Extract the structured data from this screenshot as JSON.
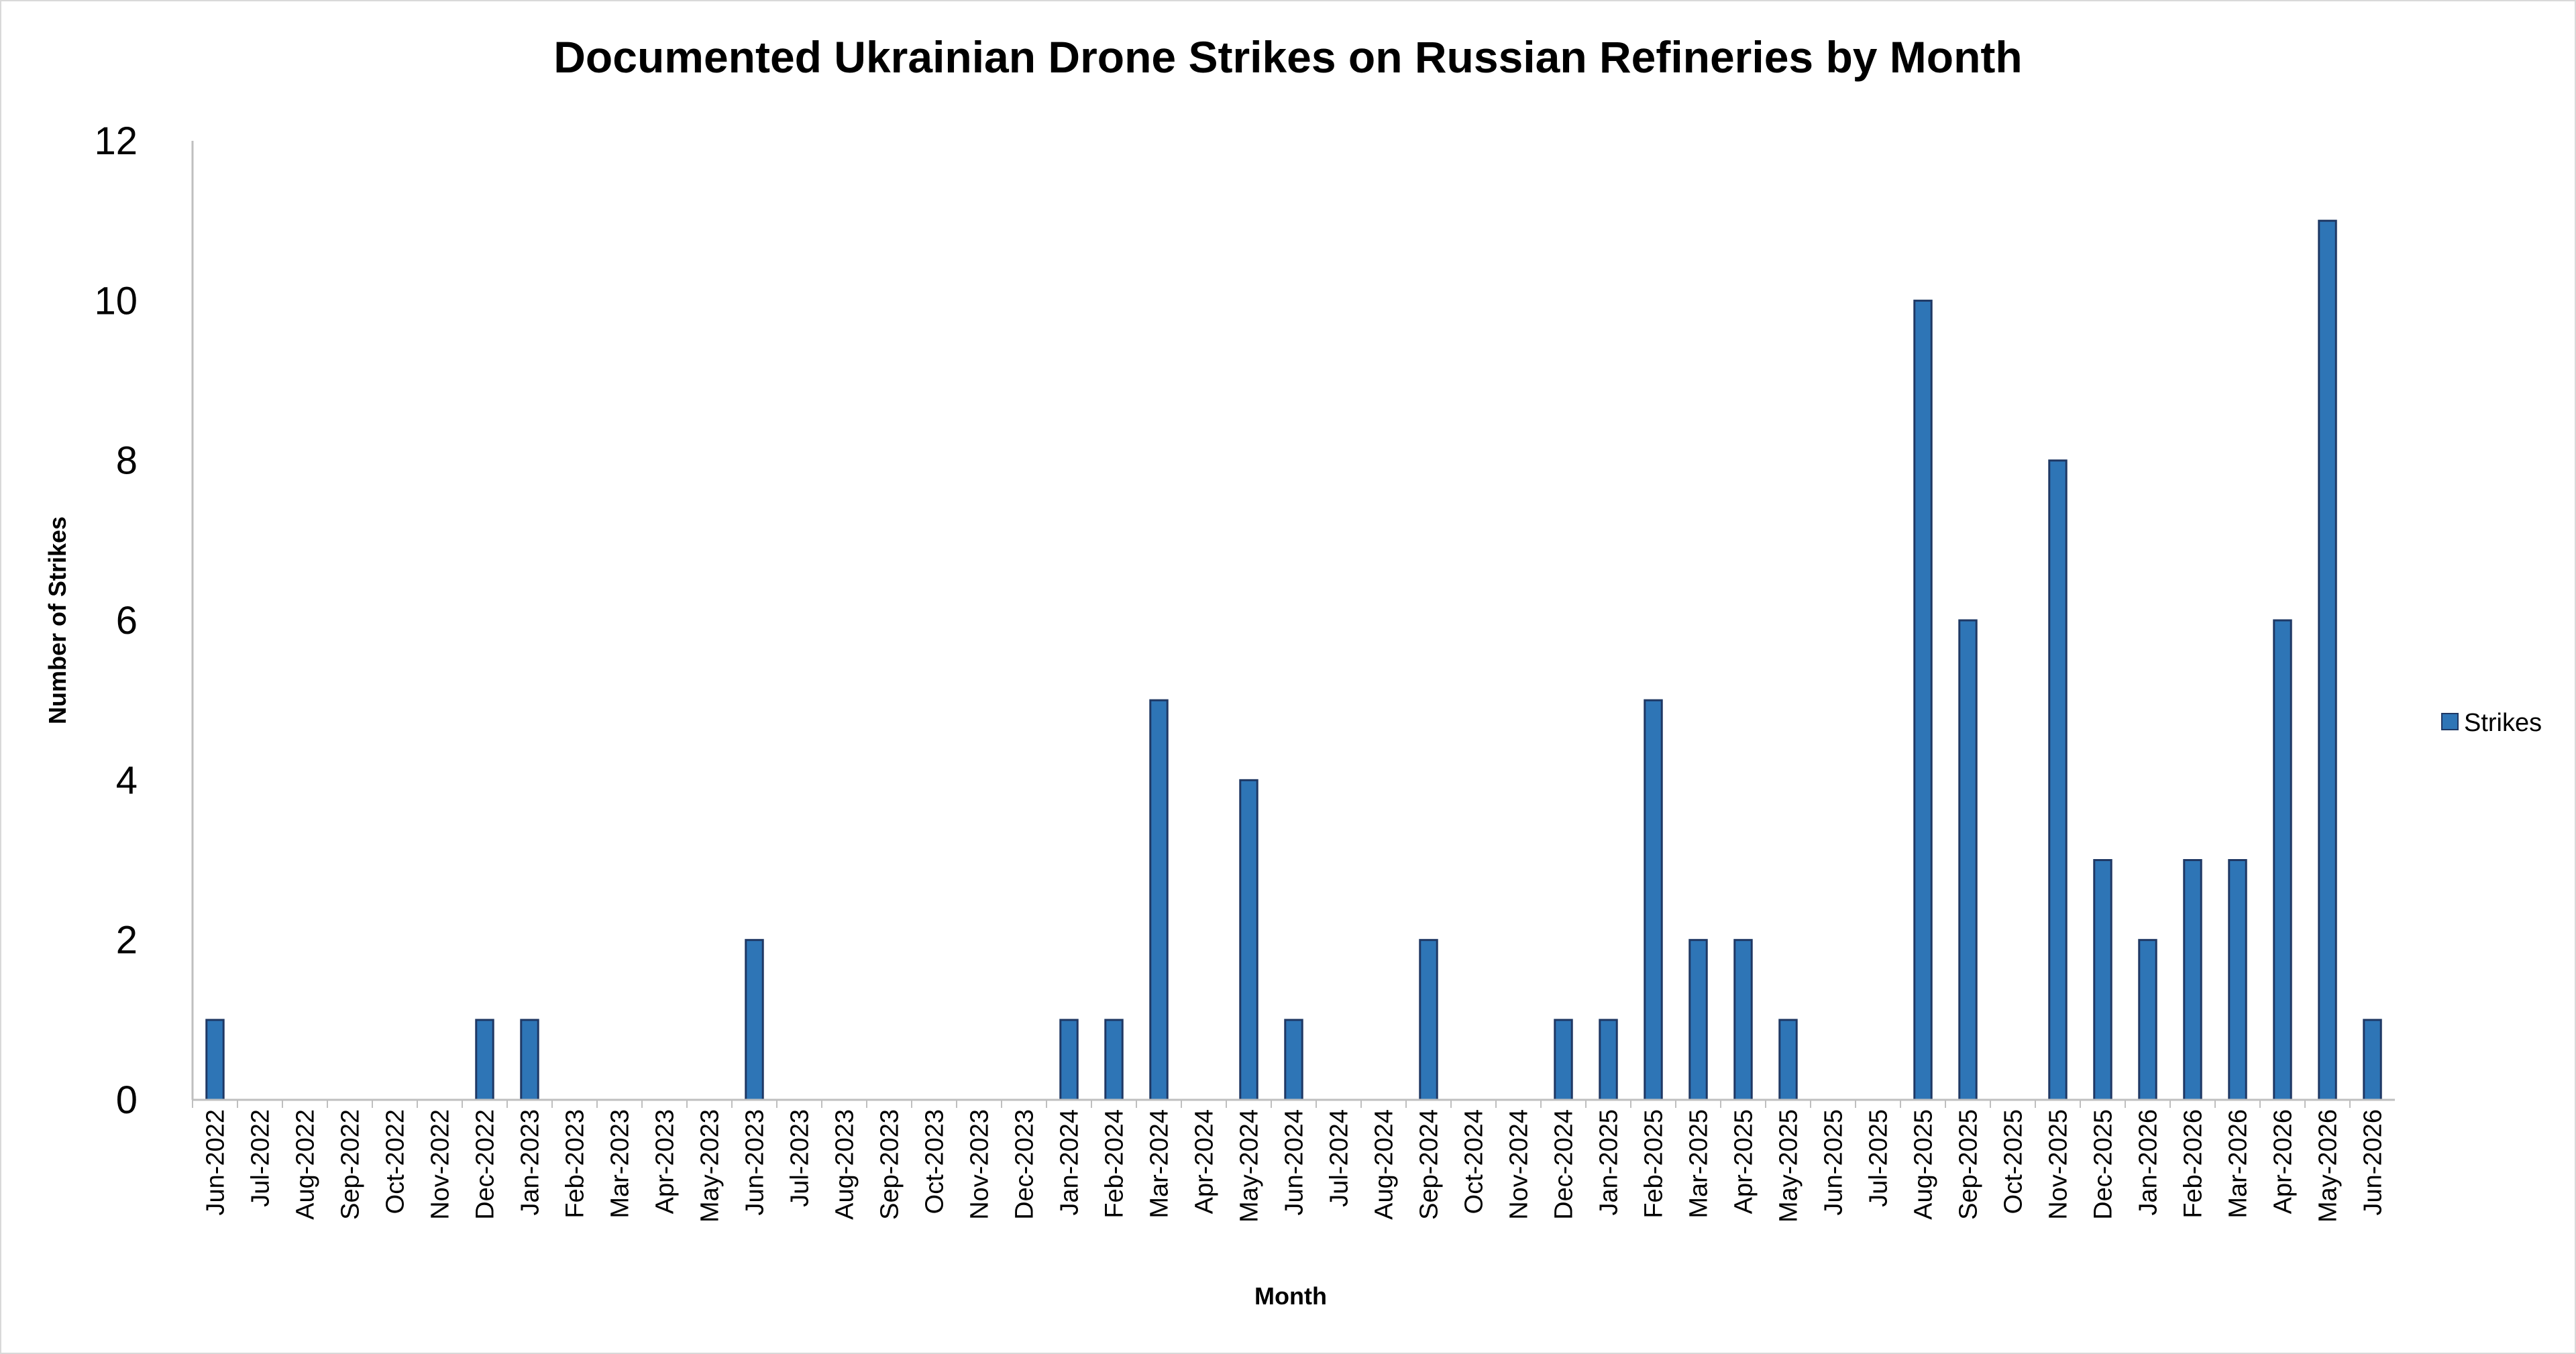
{
  "chart_data": {
    "type": "bar",
    "title": "Documented Ukrainian Drone Strikes on Russian Refineries by Month",
    "xlabel": "Month",
    "ylabel": "Number of Strikes",
    "ylim": [
      0,
      12
    ],
    "yticks": [
      "0",
      "2",
      "4",
      "6",
      "8",
      "10",
      "12"
    ],
    "grid": false,
    "legend_position": "right",
    "categories": [
      "Jun-2022",
      "Jul-2022",
      "Aug-2022",
      "Sep-2022",
      "Oct-2022",
      "Nov-2022",
      "Dec-2022",
      "Jan-2023",
      "Feb-2023",
      "Mar-2023",
      "Apr-2023",
      "May-2023",
      "Jun-2023",
      "Jul-2023",
      "Aug-2023",
      "Sep-2023",
      "Oct-2023",
      "Nov-2023",
      "Dec-2023",
      "Jan-2024",
      "Feb-2024",
      "Mar-2024",
      "Apr-2024",
      "May-2024",
      "Jun-2024",
      "Jul-2024",
      "Aug-2024",
      "Sep-2024",
      "Oct-2024",
      "Nov-2024",
      "Dec-2024",
      "Jan-2025",
      "Feb-2025",
      "Mar-2025",
      "Apr-2025",
      "May-2025",
      "Jun-2025",
      "Jul-2025",
      "Aug-2025",
      "Sep-2025",
      "Oct-2025",
      "Nov-2025",
      "Dec-2025",
      "Jan-2026",
      "Feb-2026",
      "Mar-2026",
      "Apr-2026",
      "May-2026",
      "Jun-2026"
    ],
    "series": [
      {
        "name": "Strikes",
        "color": "#2E75B6",
        "stroke": "#1F3864",
        "values": [
          1,
          0,
          0,
          0,
          0,
          0,
          1,
          1,
          0,
          0,
          0,
          0,
          2,
          0,
          0,
          0,
          0,
          0,
          0,
          1,
          1,
          5,
          0,
          4,
          1,
          0,
          0,
          2,
          0,
          0,
          1,
          1,
          5,
          2,
          2,
          1,
          0,
          0,
          10,
          6,
          0,
          8,
          3,
          2,
          3,
          3,
          6,
          11,
          1
        ]
      }
    ]
  }
}
